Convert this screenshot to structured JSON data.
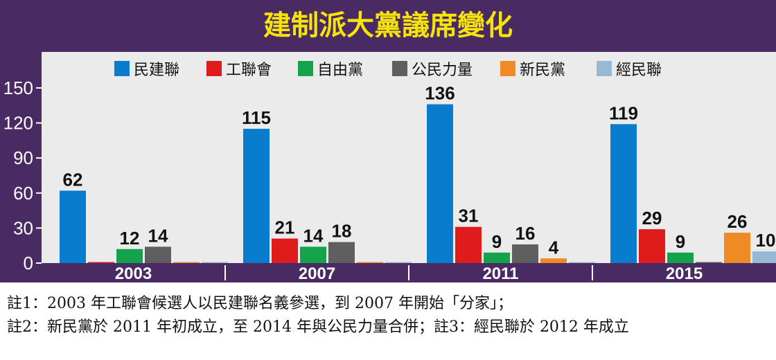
{
  "chart_data": {
    "type": "bar",
    "title": "建制派大黨議席變化",
    "categories": [
      "2003",
      "2007",
      "2011",
      "2015"
    ],
    "ylim": [
      0,
      150
    ],
    "yticks": [
      0,
      30,
      60,
      90,
      120,
      150
    ],
    "grid": false,
    "legend_position": "top",
    "series": [
      {
        "name": "民建聯",
        "color": "#0a7ccd",
        "values": [
          62,
          115,
          136,
          119
        ]
      },
      {
        "name": "工聯會",
        "color": "#e01b1b",
        "values": [
          0,
          21,
          31,
          29
        ]
      },
      {
        "name": "自由黨",
        "color": "#14a24a",
        "values": [
          12,
          14,
          9,
          9
        ]
      },
      {
        "name": "公民力量",
        "color": "#5f5f5f",
        "values": [
          14,
          18,
          16,
          0
        ]
      },
      {
        "name": "新民黨",
        "color": "#f08a24",
        "values": [
          0,
          0,
          4,
          26
        ]
      },
      {
        "name": "經民聯",
        "color": "#98b9d6",
        "values": [
          0,
          0,
          0,
          10
        ]
      }
    ]
  },
  "colors": {
    "background": "#4a2a63",
    "plot_background": "#ebebeb",
    "title_text": "#f5e30a",
    "category_band": "#4a2a63"
  },
  "notes": [
    "註1：2003 年工聯會候選人以民建聯名義參選，到 2007 年開始「分家」；",
    "註2：新民黨於 2011 年初成立，至 2014 年與公民力量合併；註3：經民聯於 2012 年成立"
  ]
}
